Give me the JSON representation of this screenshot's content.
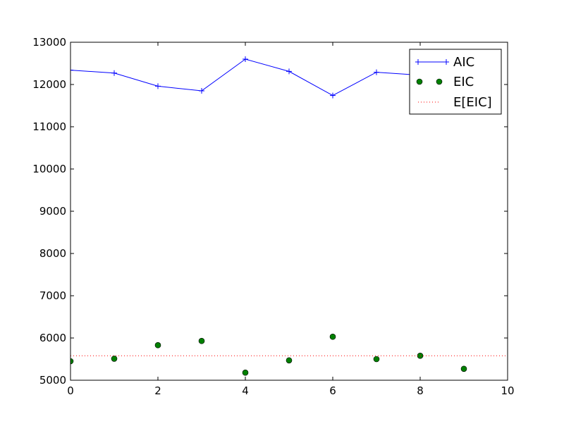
{
  "chart_data": {
    "type": "line",
    "title": "",
    "xlabel": "",
    "ylabel": "",
    "xlim": [
      0,
      10
    ],
    "ylim": [
      5000,
      13000
    ],
    "x_ticks": [
      0,
      2,
      4,
      6,
      8,
      10
    ],
    "y_ticks": [
      5000,
      6000,
      7000,
      8000,
      9000,
      10000,
      11000,
      12000,
      13000
    ],
    "x_tick_labels": [
      "0",
      "2",
      "4",
      "6",
      "8",
      "10"
    ],
    "y_tick_labels": [
      "5000",
      "6000",
      "7000",
      "8000",
      "9000",
      "10000",
      "11000",
      "12000",
      "13000"
    ],
    "grid": false,
    "legend_position": "top-right",
    "series": [
      {
        "name": "AIC",
        "kind": "line",
        "marker": "plus",
        "color": "#0000ff",
        "x": [
          0,
          1,
          2,
          3,
          4,
          5,
          6,
          7,
          8,
          9
        ],
        "y": [
          12340,
          12270,
          11960,
          11850,
          12600,
          12310,
          11740,
          12290,
          12220,
          12200
        ]
      },
      {
        "name": "EIC",
        "kind": "scatter",
        "marker": "circle",
        "color": "#008000",
        "x": [
          0,
          1,
          2,
          3,
          4,
          5,
          6,
          7,
          8,
          9
        ],
        "y": [
          5450,
          5510,
          5830,
          5930,
          5180,
          5470,
          6030,
          5500,
          5580,
          5270
        ]
      },
      {
        "name": "E[EIC]",
        "kind": "hline",
        "linestyle": "dotted",
        "color": "#ff0000",
        "y": 5580
      }
    ]
  }
}
